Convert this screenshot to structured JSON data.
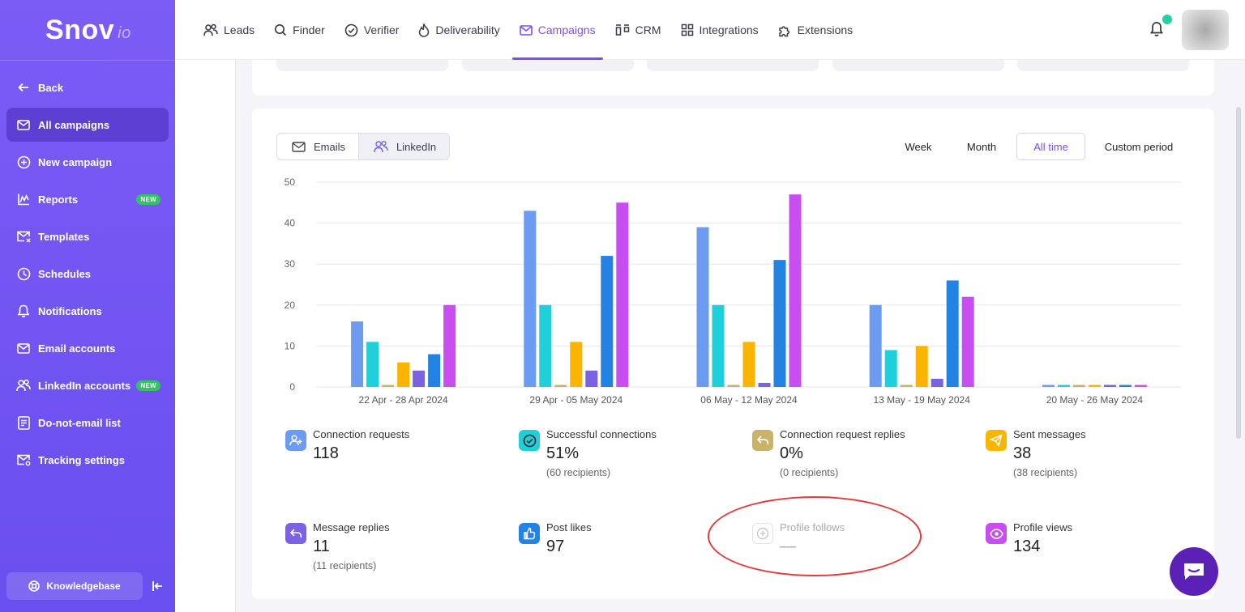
{
  "brand": {
    "name": "Snov",
    "suffix": "io"
  },
  "sidebar": {
    "items": [
      {
        "label": "Back",
        "icon": "arrow-left-icon"
      },
      {
        "label": "All campaigns",
        "icon": "mail-icon",
        "active": true
      },
      {
        "label": "New campaign",
        "icon": "plus-circle-icon"
      },
      {
        "label": "Reports",
        "icon": "chart-icon",
        "badge": "NEW"
      },
      {
        "label": "Templates",
        "icon": "template-mail-icon"
      },
      {
        "label": "Schedules",
        "icon": "clock-icon"
      },
      {
        "label": "Notifications",
        "icon": "bell-icon"
      },
      {
        "label": "Email accounts",
        "icon": "mail-icon"
      },
      {
        "label": "LinkedIn accounts",
        "icon": "users-icon",
        "badge": "NEW"
      },
      {
        "label": "Do-not-email list",
        "icon": "list-icon"
      },
      {
        "label": "Tracking settings",
        "icon": "mail-settings-icon"
      }
    ],
    "knowledgebase": "Knowledgebase"
  },
  "topnav": {
    "items": [
      {
        "label": "Leads",
        "icon": "users-icon"
      },
      {
        "label": "Finder",
        "icon": "search-icon"
      },
      {
        "label": "Verifier",
        "icon": "check-circle-icon"
      },
      {
        "label": "Deliverability",
        "icon": "flame-icon"
      },
      {
        "label": "Campaigns",
        "icon": "mail-icon",
        "active": true
      },
      {
        "label": "CRM",
        "icon": "crm-icon"
      },
      {
        "label": "Integrations",
        "icon": "grid-icon"
      },
      {
        "label": "Extensions",
        "icon": "puzzle-icon"
      }
    ]
  },
  "toggle": {
    "emails": "Emails",
    "linkedin": "LinkedIn",
    "selected": "LinkedIn"
  },
  "periods": {
    "items": [
      "Week",
      "Month",
      "All time",
      "Custom period"
    ],
    "selected": "All time"
  },
  "chart_data": {
    "type": "bar",
    "categories": [
      "22 Apr - 28 Apr 2024",
      "29 Apr - 05 May 2024",
      "06 May - 12 May 2024",
      "13 May - 19 May 2024",
      "20 May - 26 May 2024"
    ],
    "ylim": [
      0,
      50
    ],
    "yticks": [
      0,
      10,
      20,
      30,
      40,
      50
    ],
    "grid": true,
    "series": [
      {
        "name": "Connection requests",
        "color": "#6b9cf2",
        "values": [
          16,
          43,
          39,
          20,
          0
        ]
      },
      {
        "name": "Successful connections",
        "color": "#1fcfd9",
        "values": [
          11,
          20,
          20,
          9,
          0
        ]
      },
      {
        "name": "Connection request replies",
        "color": "#c9b26a",
        "values": [
          0,
          0,
          0,
          0,
          0
        ]
      },
      {
        "name": "Sent messages",
        "color": "#fbb500",
        "values": [
          6,
          11,
          11,
          10,
          0
        ]
      },
      {
        "name": "Message replies",
        "color": "#7b62e3",
        "values": [
          4,
          4,
          1,
          2,
          0
        ]
      },
      {
        "name": "Post likes",
        "color": "#2383e2",
        "values": [
          8,
          32,
          31,
          26,
          0
        ]
      },
      {
        "name": "Profile views",
        "color": "#c84ef2",
        "values": [
          20,
          45,
          47,
          22,
          0
        ]
      }
    ]
  },
  "stats": [
    {
      "label": "Connection requests",
      "value": "118",
      "sub": "",
      "color": "#6b9cf2",
      "icon": "user-plus-icon"
    },
    {
      "label": "Successful connections",
      "value": "51%",
      "sub": "(60 recipients)",
      "color": "#1fcfd9",
      "icon": "check-circle-icon"
    },
    {
      "label": "Connection request replies",
      "value": "0%",
      "sub": "(0 recipients)",
      "color": "#c9b26a",
      "icon": "reply-icon"
    },
    {
      "label": "Sent messages",
      "value": "38",
      "sub": "(38 recipients)",
      "color": "#fbb500",
      "icon": "send-icon"
    },
    {
      "label": "Message replies",
      "value": "11",
      "sub": "(11 recipients)",
      "color": "#7b62e3",
      "icon": "reply-icon"
    },
    {
      "label": "Post likes",
      "value": "97",
      "sub": "",
      "color": "#2383e2",
      "icon": "thumb-icon"
    },
    {
      "label": "Profile follows",
      "value": "—",
      "sub": "",
      "color": "#e0e0e8",
      "icon": "plus-circle-icon"
    },
    {
      "label": "Profile views",
      "value": "134",
      "sub": "",
      "color": "#c84ef2",
      "icon": "eye-icon"
    }
  ]
}
